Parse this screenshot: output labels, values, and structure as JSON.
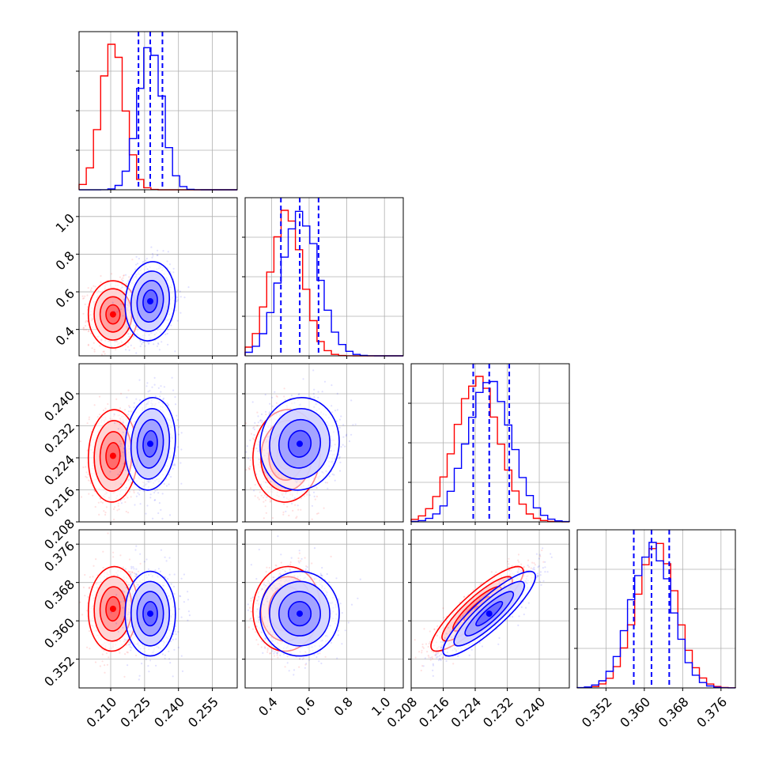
{
  "chart_data": {
    "type": "corner",
    "params": [
      {
        "id": "p0",
        "lim": [
          0.196,
          0.266
        ],
        "ticks": [
          "0.210",
          "0.225",
          "0.240",
          "0.255"
        ],
        "tick_values": [
          0.21,
          0.225,
          0.24,
          0.255
        ]
      },
      {
        "id": "p1",
        "lim": [
          0.26,
          1.1
        ],
        "ticks": [
          "0.4",
          "0.6",
          "0.8",
          "1.0"
        ],
        "tick_values": [
          0.4,
          0.6,
          0.8,
          1.0
        ]
      },
      {
        "id": "p2",
        "lim": [
          0.208,
          0.2475
        ],
        "ticks": [
          "0.208",
          "0.216",
          "0.224",
          "0.232",
          "0.240"
        ],
        "tick_values": [
          0.208,
          0.216,
          0.224,
          0.232,
          0.24
        ]
      },
      {
        "id": "p3",
        "lim": [
          0.346,
          0.379
        ],
        "ticks": [
          "0.352",
          "0.360",
          "0.368",
          "0.376"
        ],
        "tick_values": [
          0.352,
          0.36,
          0.368,
          0.376
        ]
      }
    ],
    "series": [
      {
        "color": "#ff0000",
        "mean": [
          0.211,
          0.48,
          0.2245,
          0.3625
        ],
        "sigma": [
          0.0052,
          0.085,
          0.0055,
          0.0042
        ],
        "corr": {
          "0-1": 0.0,
          "0-2": 0.05,
          "0-3": 0.05,
          "1-2": 0.05,
          "1-3": 0.05,
          "2-3": 0.88
        },
        "quantile_lines": false
      },
      {
        "color": "#0000ff",
        "mean": [
          0.2275,
          0.55,
          0.2275,
          0.3615
        ],
        "sigma": [
          0.0053,
          0.1,
          0.0055,
          0.0042
        ],
        "corr": {
          "0-1": 0.1,
          "0-2": 0.1,
          "0-3": 0.0,
          "1-2": 0.05,
          "1-3": 0.0,
          "2-3": 0.88
        },
        "quantile_lines": true,
        "quantiles": [
          [
            0.2223,
            0.2275,
            0.2329
          ],
          [
            0.45,
            0.55,
            0.65
          ],
          [
            0.2235,
            0.2275,
            0.2325
          ],
          [
            0.3578,
            0.3615,
            0.3652
          ]
        ]
      }
    ],
    "grid": true,
    "legend": "none",
    "xlabel": "",
    "ylabel": "",
    "title": ""
  }
}
